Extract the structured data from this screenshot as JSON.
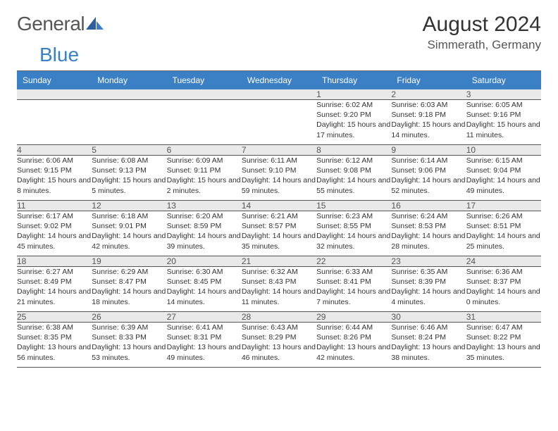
{
  "brand": {
    "part1": "General",
    "part2": "Blue"
  },
  "title": "August 2024",
  "location": "Simmerath, Germany",
  "day_headers": [
    "Sunday",
    "Monday",
    "Tuesday",
    "Wednesday",
    "Thursday",
    "Friday",
    "Saturday"
  ],
  "colors": {
    "header_bg": "#3b7fc4",
    "header_fg": "#ffffff",
    "daynum_bg": "#e9e9e9",
    "text": "#333333",
    "rule": "#555555",
    "page_bg": "#ffffff"
  },
  "typography": {
    "title_fontsize": 30,
    "location_fontsize": 17,
    "header_fontsize": 12,
    "cell_fontsize": 10.5,
    "logo_fontsize": 28
  },
  "weeks": [
    [
      null,
      null,
      null,
      null,
      {
        "num": "1",
        "sunrise": "6:02 AM",
        "sunset": "9:20 PM",
        "daylight": "15 hours and 17 minutes."
      },
      {
        "num": "2",
        "sunrise": "6:03 AM",
        "sunset": "9:18 PM",
        "daylight": "15 hours and 14 minutes."
      },
      {
        "num": "3",
        "sunrise": "6:05 AM",
        "sunset": "9:16 PM",
        "daylight": "15 hours and 11 minutes."
      }
    ],
    [
      {
        "num": "4",
        "sunrise": "6:06 AM",
        "sunset": "9:15 PM",
        "daylight": "15 hours and 8 minutes."
      },
      {
        "num": "5",
        "sunrise": "6:08 AM",
        "sunset": "9:13 PM",
        "daylight": "15 hours and 5 minutes."
      },
      {
        "num": "6",
        "sunrise": "6:09 AM",
        "sunset": "9:11 PM",
        "daylight": "15 hours and 2 minutes."
      },
      {
        "num": "7",
        "sunrise": "6:11 AM",
        "sunset": "9:10 PM",
        "daylight": "14 hours and 59 minutes."
      },
      {
        "num": "8",
        "sunrise": "6:12 AM",
        "sunset": "9:08 PM",
        "daylight": "14 hours and 55 minutes."
      },
      {
        "num": "9",
        "sunrise": "6:14 AM",
        "sunset": "9:06 PM",
        "daylight": "14 hours and 52 minutes."
      },
      {
        "num": "10",
        "sunrise": "6:15 AM",
        "sunset": "9:04 PM",
        "daylight": "14 hours and 49 minutes."
      }
    ],
    [
      {
        "num": "11",
        "sunrise": "6:17 AM",
        "sunset": "9:02 PM",
        "daylight": "14 hours and 45 minutes."
      },
      {
        "num": "12",
        "sunrise": "6:18 AM",
        "sunset": "9:01 PM",
        "daylight": "14 hours and 42 minutes."
      },
      {
        "num": "13",
        "sunrise": "6:20 AM",
        "sunset": "8:59 PM",
        "daylight": "14 hours and 39 minutes."
      },
      {
        "num": "14",
        "sunrise": "6:21 AM",
        "sunset": "8:57 PM",
        "daylight": "14 hours and 35 minutes."
      },
      {
        "num": "15",
        "sunrise": "6:23 AM",
        "sunset": "8:55 PM",
        "daylight": "14 hours and 32 minutes."
      },
      {
        "num": "16",
        "sunrise": "6:24 AM",
        "sunset": "8:53 PM",
        "daylight": "14 hours and 28 minutes."
      },
      {
        "num": "17",
        "sunrise": "6:26 AM",
        "sunset": "8:51 PM",
        "daylight": "14 hours and 25 minutes."
      }
    ],
    [
      {
        "num": "18",
        "sunrise": "6:27 AM",
        "sunset": "8:49 PM",
        "daylight": "14 hours and 21 minutes."
      },
      {
        "num": "19",
        "sunrise": "6:29 AM",
        "sunset": "8:47 PM",
        "daylight": "14 hours and 18 minutes."
      },
      {
        "num": "20",
        "sunrise": "6:30 AM",
        "sunset": "8:45 PM",
        "daylight": "14 hours and 14 minutes."
      },
      {
        "num": "21",
        "sunrise": "6:32 AM",
        "sunset": "8:43 PM",
        "daylight": "14 hours and 11 minutes."
      },
      {
        "num": "22",
        "sunrise": "6:33 AM",
        "sunset": "8:41 PM",
        "daylight": "14 hours and 7 minutes."
      },
      {
        "num": "23",
        "sunrise": "6:35 AM",
        "sunset": "8:39 PM",
        "daylight": "14 hours and 4 minutes."
      },
      {
        "num": "24",
        "sunrise": "6:36 AM",
        "sunset": "8:37 PM",
        "daylight": "14 hours and 0 minutes."
      }
    ],
    [
      {
        "num": "25",
        "sunrise": "6:38 AM",
        "sunset": "8:35 PM",
        "daylight": "13 hours and 56 minutes."
      },
      {
        "num": "26",
        "sunrise": "6:39 AM",
        "sunset": "8:33 PM",
        "daylight": "13 hours and 53 minutes."
      },
      {
        "num": "27",
        "sunrise": "6:41 AM",
        "sunset": "8:31 PM",
        "daylight": "13 hours and 49 minutes."
      },
      {
        "num": "28",
        "sunrise": "6:43 AM",
        "sunset": "8:29 PM",
        "daylight": "13 hours and 46 minutes."
      },
      {
        "num": "29",
        "sunrise": "6:44 AM",
        "sunset": "8:26 PM",
        "daylight": "13 hours and 42 minutes."
      },
      {
        "num": "30",
        "sunrise": "6:46 AM",
        "sunset": "8:24 PM",
        "daylight": "13 hours and 38 minutes."
      },
      {
        "num": "31",
        "sunrise": "6:47 AM",
        "sunset": "8:22 PM",
        "daylight": "13 hours and 35 minutes."
      }
    ]
  ]
}
